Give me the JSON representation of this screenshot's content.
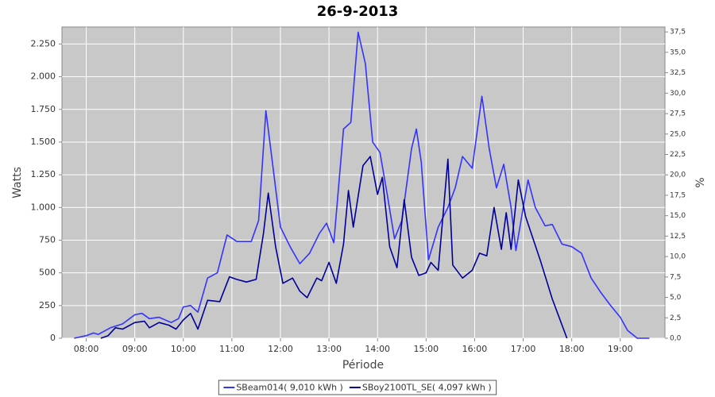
{
  "chart_data": {
    "type": "line",
    "title": "26-9-2013",
    "x_label": "Période",
    "y_label": "Watts",
    "y2_label": "%",
    "xlim": [
      7.5,
      19.92
    ],
    "xticks": [
      {
        "value": 8,
        "label": "08:00"
      },
      {
        "value": 9,
        "label": "09:00"
      },
      {
        "value": 10,
        "label": "10:00"
      },
      {
        "value": 11,
        "label": "11:00"
      },
      {
        "value": 12,
        "label": "12:00"
      },
      {
        "value": 13,
        "label": "13:00"
      },
      {
        "value": 14,
        "label": "14:00"
      },
      {
        "value": 15,
        "label": "15:00"
      },
      {
        "value": 16,
        "label": "16:00"
      },
      {
        "value": 17,
        "label": "17:00"
      },
      {
        "value": 18,
        "label": "18:00"
      },
      {
        "value": 19,
        "label": "19:00"
      }
    ],
    "ylim": [
      0,
      2380
    ],
    "yticks": [
      0,
      250,
      500,
      750,
      {
        "value": 1000,
        "label": "1.000"
      },
      {
        "value": 1250,
        "label": "1.250"
      },
      {
        "value": 1500,
        "label": "1.500"
      },
      {
        "value": 1750,
        "label": "1.750"
      },
      {
        "value": 2000,
        "label": "2.000"
      },
      {
        "value": 2250,
        "label": "2.250"
      }
    ],
    "y2lim": [
      0,
      38.1
    ],
    "y2ticks": [
      {
        "value": 0,
        "label": "0,0"
      },
      {
        "value": 2.5,
        "label": "2,5"
      },
      {
        "value": 5,
        "label": "5,0"
      },
      {
        "value": 7.5,
        "label": "7,5"
      },
      {
        "value": 10,
        "label": "10,0"
      },
      {
        "value": 12.5,
        "label": "12,5"
      },
      {
        "value": 15,
        "label": "15,0"
      },
      {
        "value": 17.5,
        "label": "17,5"
      },
      {
        "value": 20,
        "label": "20,0"
      },
      {
        "value": 22.5,
        "label": "22,5"
      },
      {
        "value": 25,
        "label": "25,0"
      },
      {
        "value": 27.5,
        "label": "27,5"
      },
      {
        "value": 30,
        "label": "30,0"
      },
      {
        "value": 32.5,
        "label": "32,5"
      },
      {
        "value": 35,
        "label": "35,0"
      },
      {
        "value": 37.5,
        "label": "37,5"
      }
    ],
    "grid": true,
    "legend": "bottom",
    "series": [
      {
        "name": "SBeam014( 9,010 kWh )",
        "color": "#3333ff",
        "x": [
          7.75,
          8.0,
          8.15,
          8.25,
          8.4,
          8.5,
          8.75,
          9.0,
          9.15,
          9.3,
          9.5,
          9.75,
          9.9,
          10.0,
          10.15,
          10.3,
          10.5,
          10.7,
          10.9,
          11.1,
          11.4,
          11.55,
          11.7,
          11.85,
          12.0,
          12.2,
          12.4,
          12.6,
          12.8,
          12.95,
          13.1,
          13.3,
          13.45,
          13.6,
          13.75,
          13.9,
          14.05,
          14.2,
          14.35,
          14.5,
          14.7,
          14.8,
          14.9,
          15.05,
          15.25,
          15.45,
          15.6,
          15.75,
          15.95,
          16.15,
          16.3,
          16.45,
          16.6,
          16.75,
          16.85,
          17.0,
          17.1,
          17.25,
          17.45,
          17.6,
          17.8,
          18.0,
          18.2,
          18.4,
          18.6,
          18.8,
          19.0,
          19.15,
          19.35,
          19.6
        ],
        "values": [
          0,
          20,
          40,
          30,
          60,
          80,
          110,
          180,
          190,
          150,
          160,
          120,
          150,
          240,
          250,
          200,
          460,
          500,
          790,
          740,
          740,
          900,
          1740,
          1300,
          850,
          700,
          570,
          650,
          800,
          880,
          730,
          1600,
          1650,
          2340,
          2100,
          1500,
          1420,
          1100,
          760,
          900,
          1450,
          1600,
          1350,
          600,
          850,
          1000,
          1150,
          1390,
          1300,
          1850,
          1450,
          1150,
          1330,
          1000,
          670,
          1000,
          1210,
          1000,
          860,
          870,
          720,
          700,
          650,
          460,
          350,
          250,
          160,
          60,
          0,
          0
        ]
      },
      {
        "name": "SBoy2100TL_SE( 4,097 kWh )",
        "color": "#000099",
        "x": [
          8.3,
          8.45,
          8.6,
          8.75,
          9.0,
          9.2,
          9.3,
          9.5,
          9.7,
          9.85,
          10.0,
          10.15,
          10.3,
          10.5,
          10.75,
          10.95,
          11.1,
          11.3,
          11.5,
          11.65,
          11.75,
          11.9,
          12.05,
          12.25,
          12.4,
          12.55,
          12.75,
          12.85,
          13.0,
          13.15,
          13.3,
          13.4,
          13.5,
          13.7,
          13.85,
          14.0,
          14.1,
          14.25,
          14.4,
          14.55,
          14.7,
          14.85,
          15.0,
          15.1,
          15.25,
          15.45,
          15.55,
          15.75,
          15.95,
          16.1,
          16.25,
          16.4,
          16.55,
          16.65,
          16.75,
          16.9,
          17.05,
          17.35,
          17.6,
          17.9
        ],
        "values": [
          0,
          20,
          80,
          70,
          120,
          130,
          80,
          120,
          100,
          70,
          140,
          190,
          70,
          290,
          280,
          470,
          450,
          430,
          450,
          800,
          1110,
          700,
          420,
          460,
          360,
          310,
          460,
          440,
          580,
          420,
          720,
          1130,
          850,
          1320,
          1390,
          1100,
          1230,
          700,
          540,
          1060,
          620,
          480,
          500,
          580,
          520,
          1370,
          560,
          460,
          520,
          650,
          630,
          1000,
          680,
          960,
          680,
          1210,
          930,
          600,
          300,
          0
        ]
      }
    ]
  }
}
